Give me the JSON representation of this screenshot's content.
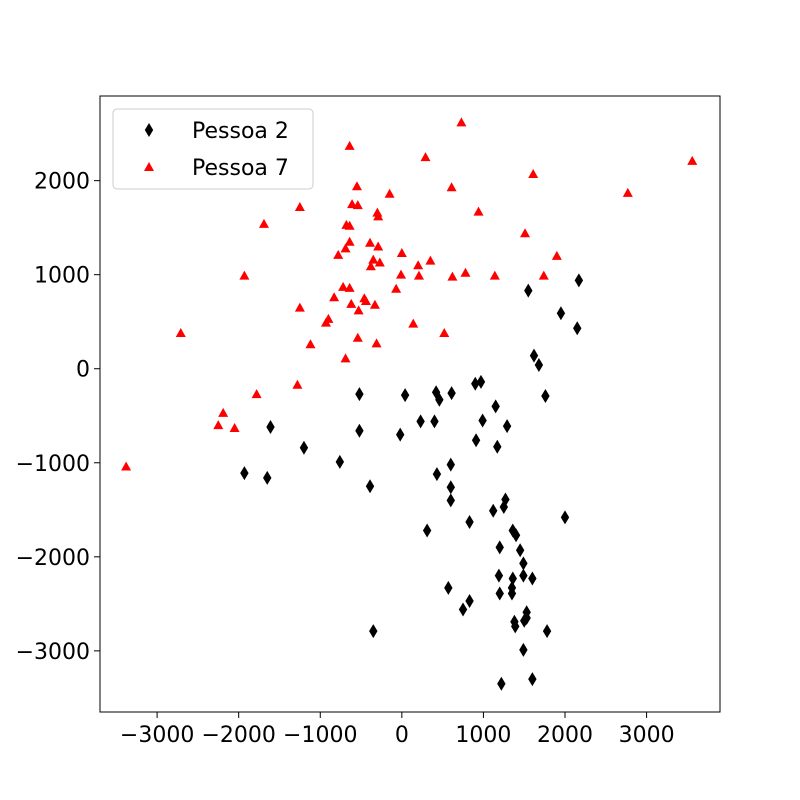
{
  "chart_data": {
    "type": "scatter",
    "title": "",
    "xlabel": "",
    "ylabel": "",
    "xlim": [
      -3700,
      3900
    ],
    "ylim": [
      -3650,
      2900
    ],
    "xticks": [
      -3000,
      -2000,
      -1000,
      0,
      1000,
      2000,
      3000
    ],
    "yticks": [
      -3000,
      -2000,
      -1000,
      0,
      1000,
      2000
    ],
    "xtick_labels": [
      "−3000",
      "−2000",
      "−1000",
      "0",
      "1000",
      "2000",
      "3000"
    ],
    "ytick_labels": [
      "−3000",
      "−2000",
      "−1000",
      "0",
      "1000",
      "2000"
    ],
    "grid": false,
    "legend_position": "top-left",
    "series": [
      {
        "name": "Pessoa 2",
        "marker": "thin-diamond",
        "color": "#000000",
        "points": [
          [
            2170,
            940
          ],
          [
            1550,
            830
          ],
          [
            1950,
            590
          ],
          [
            2150,
            430
          ],
          [
            1620,
            140
          ],
          [
            1680,
            40
          ],
          [
            1760,
            -290
          ],
          [
            970,
            -140
          ],
          [
            900,
            -160
          ],
          [
            -520,
            -270
          ],
          [
            40,
            -280
          ],
          [
            420,
            -250
          ],
          [
            460,
            -330
          ],
          [
            610,
            -260
          ],
          [
            1150,
            -400
          ],
          [
            990,
            -550
          ],
          [
            230,
            -560
          ],
          [
            400,
            -560
          ],
          [
            -520,
            -660
          ],
          [
            -20,
            -700
          ],
          [
            1290,
            -610
          ],
          [
            910,
            -760
          ],
          [
            1170,
            -830
          ],
          [
            -1200,
            -840
          ],
          [
            -1610,
            -620
          ],
          [
            -760,
            -990
          ],
          [
            600,
            -1020
          ],
          [
            -1930,
            -1110
          ],
          [
            -1650,
            -1160
          ],
          [
            430,
            -1120
          ],
          [
            -390,
            -1250
          ],
          [
            600,
            -1260
          ],
          [
            600,
            -1400
          ],
          [
            1120,
            -1510
          ],
          [
            1250,
            -1470
          ],
          [
            1270,
            -1390
          ],
          [
            2000,
            -1580
          ],
          [
            830,
            -1630
          ],
          [
            310,
            -1720
          ],
          [
            1360,
            -1720
          ],
          [
            1400,
            -1770
          ],
          [
            1200,
            -1900
          ],
          [
            1450,
            -1930
          ],
          [
            1490,
            -2070
          ],
          [
            1190,
            -2200
          ],
          [
            1360,
            -2230
          ],
          [
            1490,
            -2200
          ],
          [
            1600,
            -2230
          ],
          [
            570,
            -2330
          ],
          [
            1350,
            -2330
          ],
          [
            1200,
            -2390
          ],
          [
            1350,
            -2390
          ],
          [
            830,
            -2470
          ],
          [
            750,
            -2560
          ],
          [
            1530,
            -2590
          ],
          [
            1500,
            -2680
          ],
          [
            1530,
            -2650
          ],
          [
            1380,
            -2690
          ],
          [
            1390,
            -2740
          ],
          [
            1780,
            -2790
          ],
          [
            -350,
            -2790
          ],
          [
            1490,
            -2990
          ],
          [
            1600,
            -3300
          ],
          [
            1220,
            -3350
          ]
        ]
      },
      {
        "name": "Pessoa 7",
        "marker": "triangle",
        "color": "#ff0000",
        "points": [
          [
            730,
            2620
          ],
          [
            -640,
            2370
          ],
          [
            290,
            2250
          ],
          [
            3560,
            2210
          ],
          [
            1610,
            2070
          ],
          [
            -550,
            1940
          ],
          [
            610,
            1930
          ],
          [
            2770,
            1870
          ],
          [
            -150,
            1860
          ],
          [
            -610,
            1750
          ],
          [
            -540,
            1740
          ],
          [
            -1250,
            1720
          ],
          [
            -300,
            1660
          ],
          [
            940,
            1670
          ],
          [
            -290,
            1620
          ],
          [
            -1690,
            1540
          ],
          [
            -680,
            1530
          ],
          [
            -640,
            1520
          ],
          [
            1510,
            1440
          ],
          [
            -640,
            1350
          ],
          [
            -390,
            1340
          ],
          [
            -690,
            1280
          ],
          [
            -290,
            1300
          ],
          [
            1900,
            1200
          ],
          [
            -780,
            1210
          ],
          [
            -350,
            1160
          ],
          [
            0,
            1230
          ],
          [
            -270,
            1130
          ],
          [
            350,
            1150
          ],
          [
            -380,
            1090
          ],
          [
            200,
            1100
          ],
          [
            -10,
            1000
          ],
          [
            780,
            1020
          ],
          [
            1140,
            990
          ],
          [
            210,
            990
          ],
          [
            620,
            980
          ],
          [
            -1930,
            990
          ],
          [
            1740,
            990
          ],
          [
            -720,
            870
          ],
          [
            -640,
            860
          ],
          [
            -70,
            850
          ],
          [
            -830,
            760
          ],
          [
            -460,
            750
          ],
          [
            -440,
            720
          ],
          [
            -620,
            690
          ],
          [
            -330,
            680
          ],
          [
            -1250,
            650
          ],
          [
            -530,
            620
          ],
          [
            -900,
            530
          ],
          [
            -930,
            490
          ],
          [
            140,
            480
          ],
          [
            520,
            380
          ],
          [
            -2710,
            380
          ],
          [
            -540,
            330
          ],
          [
            -1120,
            260
          ],
          [
            -310,
            270
          ],
          [
            -690,
            110
          ],
          [
            -1280,
            -170
          ],
          [
            -1780,
            -270
          ],
          [
            -2190,
            -470
          ],
          [
            -2250,
            -600
          ],
          [
            -2050,
            -630
          ],
          [
            -3380,
            -1040
          ]
        ]
      }
    ]
  }
}
